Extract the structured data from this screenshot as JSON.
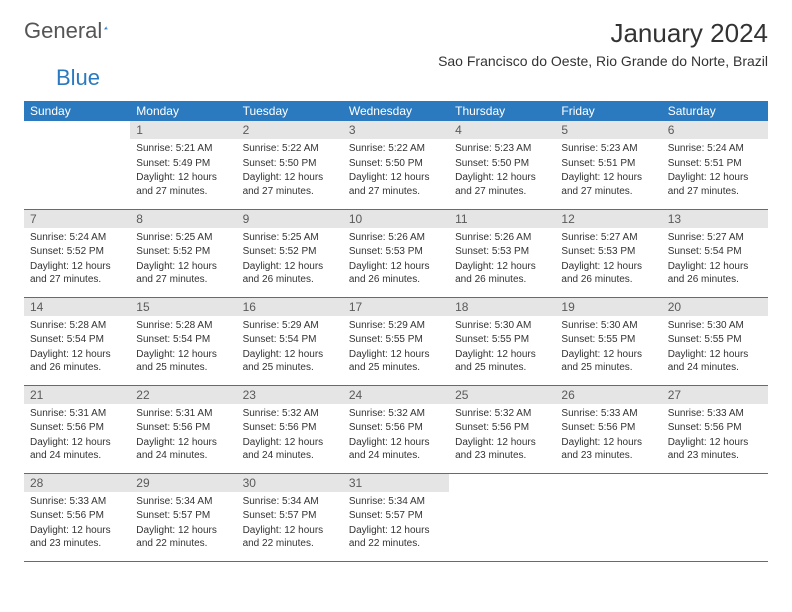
{
  "logo": {
    "part1": "General",
    "part2": "Blue"
  },
  "title": "January 2024",
  "location": "Sao Francisco do Oeste, Rio Grande do Norte, Brazil",
  "colors": {
    "header_bg": "#2b7abf",
    "header_text": "#ffffff",
    "daynum_bg": "#e5e5e5",
    "daynum_text": "#5a5a5a",
    "row_border": "#2b7abf",
    "body_text": "#333333",
    "page_bg": "#ffffff"
  },
  "headers": [
    "Sunday",
    "Monday",
    "Tuesday",
    "Wednesday",
    "Thursday",
    "Friday",
    "Saturday"
  ],
  "grid": [
    [
      null,
      {
        "n": "1",
        "sr": "5:21 AM",
        "ss": "5:49 PM",
        "dl": "12 hours and 27 minutes."
      },
      {
        "n": "2",
        "sr": "5:22 AM",
        "ss": "5:50 PM",
        "dl": "12 hours and 27 minutes."
      },
      {
        "n": "3",
        "sr": "5:22 AM",
        "ss": "5:50 PM",
        "dl": "12 hours and 27 minutes."
      },
      {
        "n": "4",
        "sr": "5:23 AM",
        "ss": "5:50 PM",
        "dl": "12 hours and 27 minutes."
      },
      {
        "n": "5",
        "sr": "5:23 AM",
        "ss": "5:51 PM",
        "dl": "12 hours and 27 minutes."
      },
      {
        "n": "6",
        "sr": "5:24 AM",
        "ss": "5:51 PM",
        "dl": "12 hours and 27 minutes."
      }
    ],
    [
      {
        "n": "7",
        "sr": "5:24 AM",
        "ss": "5:52 PM",
        "dl": "12 hours and 27 minutes."
      },
      {
        "n": "8",
        "sr": "5:25 AM",
        "ss": "5:52 PM",
        "dl": "12 hours and 27 minutes."
      },
      {
        "n": "9",
        "sr": "5:25 AM",
        "ss": "5:52 PM",
        "dl": "12 hours and 26 minutes."
      },
      {
        "n": "10",
        "sr": "5:26 AM",
        "ss": "5:53 PM",
        "dl": "12 hours and 26 minutes."
      },
      {
        "n": "11",
        "sr": "5:26 AM",
        "ss": "5:53 PM",
        "dl": "12 hours and 26 minutes."
      },
      {
        "n": "12",
        "sr": "5:27 AM",
        "ss": "5:53 PM",
        "dl": "12 hours and 26 minutes."
      },
      {
        "n": "13",
        "sr": "5:27 AM",
        "ss": "5:54 PM",
        "dl": "12 hours and 26 minutes."
      }
    ],
    [
      {
        "n": "14",
        "sr": "5:28 AM",
        "ss": "5:54 PM",
        "dl": "12 hours and 26 minutes."
      },
      {
        "n": "15",
        "sr": "5:28 AM",
        "ss": "5:54 PM",
        "dl": "12 hours and 25 minutes."
      },
      {
        "n": "16",
        "sr": "5:29 AM",
        "ss": "5:54 PM",
        "dl": "12 hours and 25 minutes."
      },
      {
        "n": "17",
        "sr": "5:29 AM",
        "ss": "5:55 PM",
        "dl": "12 hours and 25 minutes."
      },
      {
        "n": "18",
        "sr": "5:30 AM",
        "ss": "5:55 PM",
        "dl": "12 hours and 25 minutes."
      },
      {
        "n": "19",
        "sr": "5:30 AM",
        "ss": "5:55 PM",
        "dl": "12 hours and 25 minutes."
      },
      {
        "n": "20",
        "sr": "5:30 AM",
        "ss": "5:55 PM",
        "dl": "12 hours and 24 minutes."
      }
    ],
    [
      {
        "n": "21",
        "sr": "5:31 AM",
        "ss": "5:56 PM",
        "dl": "12 hours and 24 minutes."
      },
      {
        "n": "22",
        "sr": "5:31 AM",
        "ss": "5:56 PM",
        "dl": "12 hours and 24 minutes."
      },
      {
        "n": "23",
        "sr": "5:32 AM",
        "ss": "5:56 PM",
        "dl": "12 hours and 24 minutes."
      },
      {
        "n": "24",
        "sr": "5:32 AM",
        "ss": "5:56 PM",
        "dl": "12 hours and 24 minutes."
      },
      {
        "n": "25",
        "sr": "5:32 AM",
        "ss": "5:56 PM",
        "dl": "12 hours and 23 minutes."
      },
      {
        "n": "26",
        "sr": "5:33 AM",
        "ss": "5:56 PM",
        "dl": "12 hours and 23 minutes."
      },
      {
        "n": "27",
        "sr": "5:33 AM",
        "ss": "5:56 PM",
        "dl": "12 hours and 23 minutes."
      }
    ],
    [
      {
        "n": "28",
        "sr": "5:33 AM",
        "ss": "5:56 PM",
        "dl": "12 hours and 23 minutes."
      },
      {
        "n": "29",
        "sr": "5:34 AM",
        "ss": "5:57 PM",
        "dl": "12 hours and 22 minutes."
      },
      {
        "n": "30",
        "sr": "5:34 AM",
        "ss": "5:57 PM",
        "dl": "12 hours and 22 minutes."
      },
      {
        "n": "31",
        "sr": "5:34 AM",
        "ss": "5:57 PM",
        "dl": "12 hours and 22 minutes."
      },
      null,
      null,
      null
    ]
  ],
  "labels": {
    "sunrise": "Sunrise:",
    "sunset": "Sunset:",
    "daylight": "Daylight:"
  }
}
